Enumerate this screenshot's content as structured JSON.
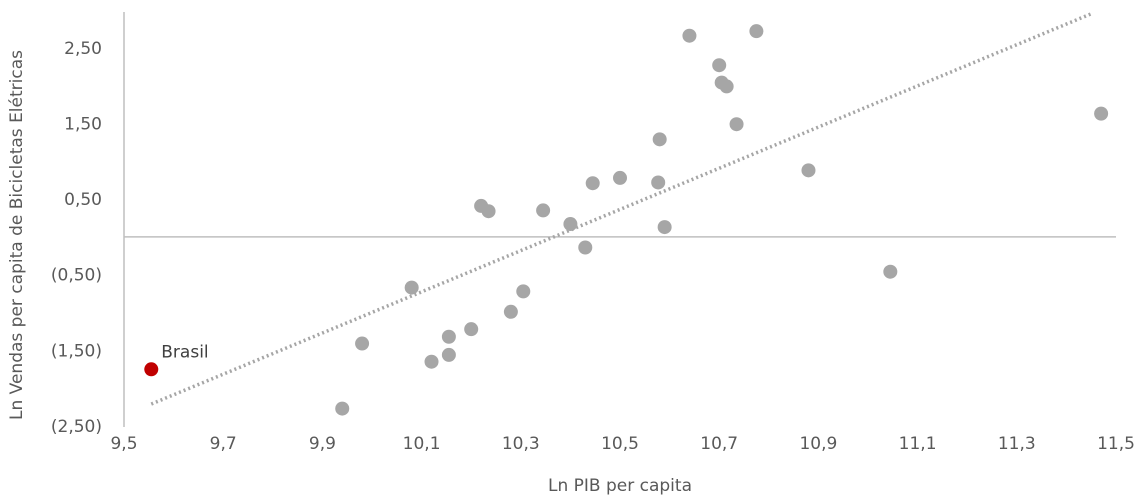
{
  "chart_data": {
    "type": "scatter",
    "xlabel": "Ln PIB per capita",
    "ylabel": "Ln Vendas per capita de Bicicletas Elétricas",
    "xlim": [
      9.5,
      11.5
    ],
    "ylim": [
      -2.5,
      3.0
    ],
    "x_ticks": [
      {
        "value": 9.5,
        "label": "9,5"
      },
      {
        "value": 9.7,
        "label": "9,7"
      },
      {
        "value": 9.9,
        "label": "9,9"
      },
      {
        "value": 10.1,
        "label": "10,1"
      },
      {
        "value": 10.3,
        "label": "10,3"
      },
      {
        "value": 10.5,
        "label": "10,5"
      },
      {
        "value": 10.7,
        "label": "10,7"
      },
      {
        "value": 10.9,
        "label": "10,9"
      },
      {
        "value": 11.1,
        "label": "11,1"
      },
      {
        "value": 11.3,
        "label": "11,3"
      },
      {
        "value": 11.5,
        "label": "11,5"
      }
    ],
    "y_ticks": [
      {
        "value": 2.5,
        "label": "2,50"
      },
      {
        "value": 1.5,
        "label": "1,50"
      },
      {
        "value": 0.5,
        "label": "0,50"
      },
      {
        "value": -0.5,
        "label": "(0,50)"
      },
      {
        "value": -1.5,
        "label": "(1,50)"
      },
      {
        "value": -2.5,
        "label": "(2,50)"
      }
    ],
    "grid": false,
    "legend": "none",
    "colors": {
      "points": "#a6a6a6",
      "highlight": "#c00000",
      "trendline": "#a6a6a6",
      "axis": "#bfbfbf"
    },
    "points": [
      {
        "x": 9.94,
        "y": -2.27
      },
      {
        "x": 9.98,
        "y": -1.41
      },
      {
        "x": 10.08,
        "y": -0.67
      },
      {
        "x": 10.12,
        "y": -1.65
      },
      {
        "x": 10.155,
        "y": -1.32
      },
      {
        "x": 10.155,
        "y": -1.56
      },
      {
        "x": 10.2,
        "y": -1.22
      },
      {
        "x": 10.22,
        "y": 0.41
      },
      {
        "x": 10.235,
        "y": 0.34
      },
      {
        "x": 10.28,
        "y": -0.99
      },
      {
        "x": 10.305,
        "y": -0.72
      },
      {
        "x": 10.345,
        "y": 0.35
      },
      {
        "x": 10.4,
        "y": 0.17
      },
      {
        "x": 10.43,
        "y": -0.14
      },
      {
        "x": 10.445,
        "y": 0.71
      },
      {
        "x": 10.5,
        "y": 0.78
      },
      {
        "x": 10.577,
        "y": 0.72
      },
      {
        "x": 10.58,
        "y": 1.29
      },
      {
        "x": 10.59,
        "y": 0.13
      },
      {
        "x": 10.64,
        "y": 2.66
      },
      {
        "x": 10.7,
        "y": 2.27
      },
      {
        "x": 10.705,
        "y": 2.04
      },
      {
        "x": 10.715,
        "y": 1.99
      },
      {
        "x": 10.735,
        "y": 1.49
      },
      {
        "x": 10.775,
        "y": 2.72
      },
      {
        "x": 10.88,
        "y": 0.88
      },
      {
        "x": 11.045,
        "y": -0.46
      },
      {
        "x": 11.47,
        "y": 1.63
      }
    ],
    "highlight": {
      "label": "Brasil",
      "x": 9.555,
      "y": -1.75
    },
    "trendline": {
      "style": "dotted",
      "x": [
        9.555,
        11.45
      ],
      "y": [
        -2.21,
        2.95
      ]
    }
  }
}
